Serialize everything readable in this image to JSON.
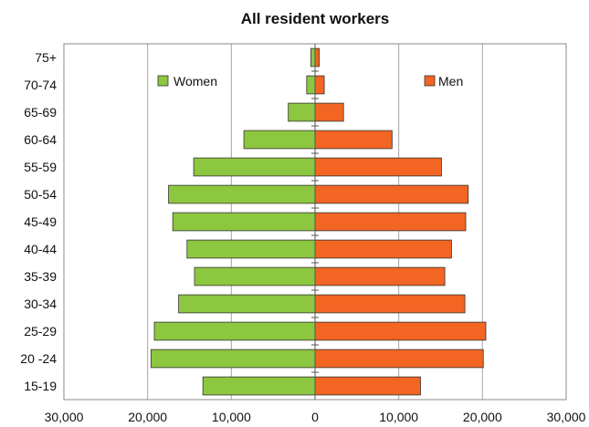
{
  "chart_data": {
    "type": "bar",
    "orientation": "horizontal",
    "title": "All resident workers",
    "categories": [
      "75+",
      "70-74",
      "65-69",
      "60-64",
      "55-59",
      "50-54",
      "45-49",
      "40-44",
      "35-39",
      "30-34",
      "25-29",
      "20 -24",
      "15-19"
    ],
    "series": [
      {
        "name": "Women",
        "color": "#8dc63f",
        "side": "left",
        "values": [
          500,
          1000,
          3200,
          8500,
          14500,
          17500,
          17000,
          15300,
          14400,
          16300,
          19200,
          19600,
          13400
        ]
      },
      {
        "name": "Men",
        "color": "#f26522",
        "side": "right",
        "values": [
          500,
          1100,
          3400,
          9200,
          15100,
          18300,
          18000,
          16300,
          15500,
          17900,
          20400,
          20100,
          12600
        ]
      }
    ],
    "xlim": [
      -30000,
      30000
    ],
    "x_ticks": [
      -30000,
      -20000,
      -10000,
      0,
      10000,
      20000,
      30000
    ],
    "x_tick_labels": [
      "30,000",
      "20,000",
      "10,000",
      "0",
      "10,000",
      "20,000",
      "30,000"
    ],
    "grid": "vertical",
    "legend": "inside-top"
  }
}
